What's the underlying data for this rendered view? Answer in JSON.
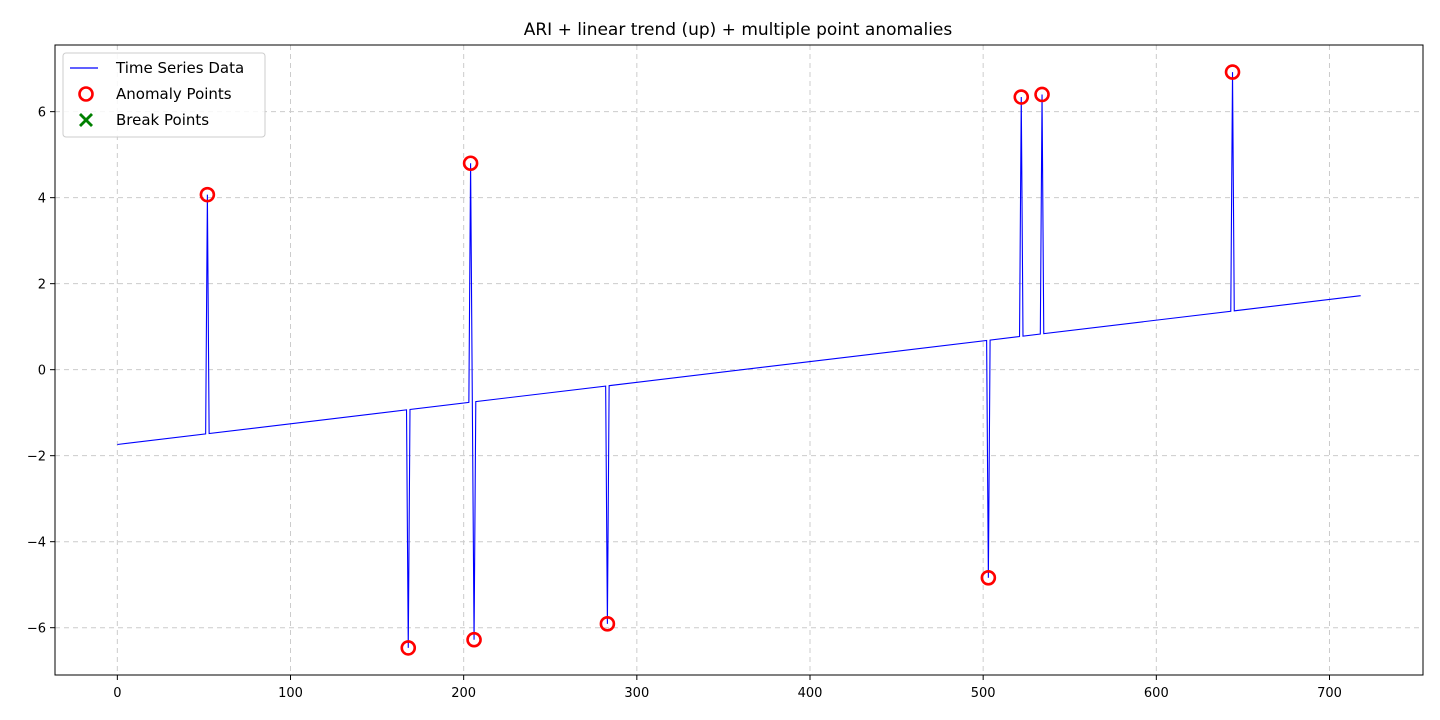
{
  "chart_data": {
    "type": "line",
    "title": "ARI + linear trend (up) + multiple point anomalies",
    "xlabel": "",
    "ylabel": "",
    "xlim": [
      -36,
      754
    ],
    "ylim": [
      -7.1,
      7.55
    ],
    "x_ticks": [
      0,
      100,
      200,
      300,
      400,
      500,
      600,
      700
    ],
    "y_ticks": [
      -6,
      -4,
      -2,
      0,
      2,
      4,
      6
    ],
    "grid": true,
    "legend_position": "top-left",
    "colors": {
      "series": "#0000ff",
      "anomaly": "#ff0000",
      "break": "#008000",
      "grid": "#cccccc"
    },
    "trend": {
      "x_start": 0,
      "x_end": 718,
      "y_start": -1.74,
      "y_end": 1.72
    },
    "series": [
      {
        "name": "Time Series Data",
        "kind": "line"
      }
    ],
    "anomalies": [
      {
        "x": 52,
        "y": 4.07
      },
      {
        "x": 168,
        "y": -6.47
      },
      {
        "x": 204,
        "y": 4.8
      },
      {
        "x": 206,
        "y": -6.28
      },
      {
        "x": 283,
        "y": -5.91
      },
      {
        "x": 503,
        "y": -4.84
      },
      {
        "x": 522,
        "y": 6.34
      },
      {
        "x": 534,
        "y": 6.4
      },
      {
        "x": 644,
        "y": 6.92
      }
    ],
    "break_points": [],
    "legend": [
      {
        "label": "Time Series Data",
        "marker": "line"
      },
      {
        "label": "Anomaly Points",
        "marker": "circle"
      },
      {
        "label": "Break Points",
        "marker": "x"
      }
    ]
  }
}
